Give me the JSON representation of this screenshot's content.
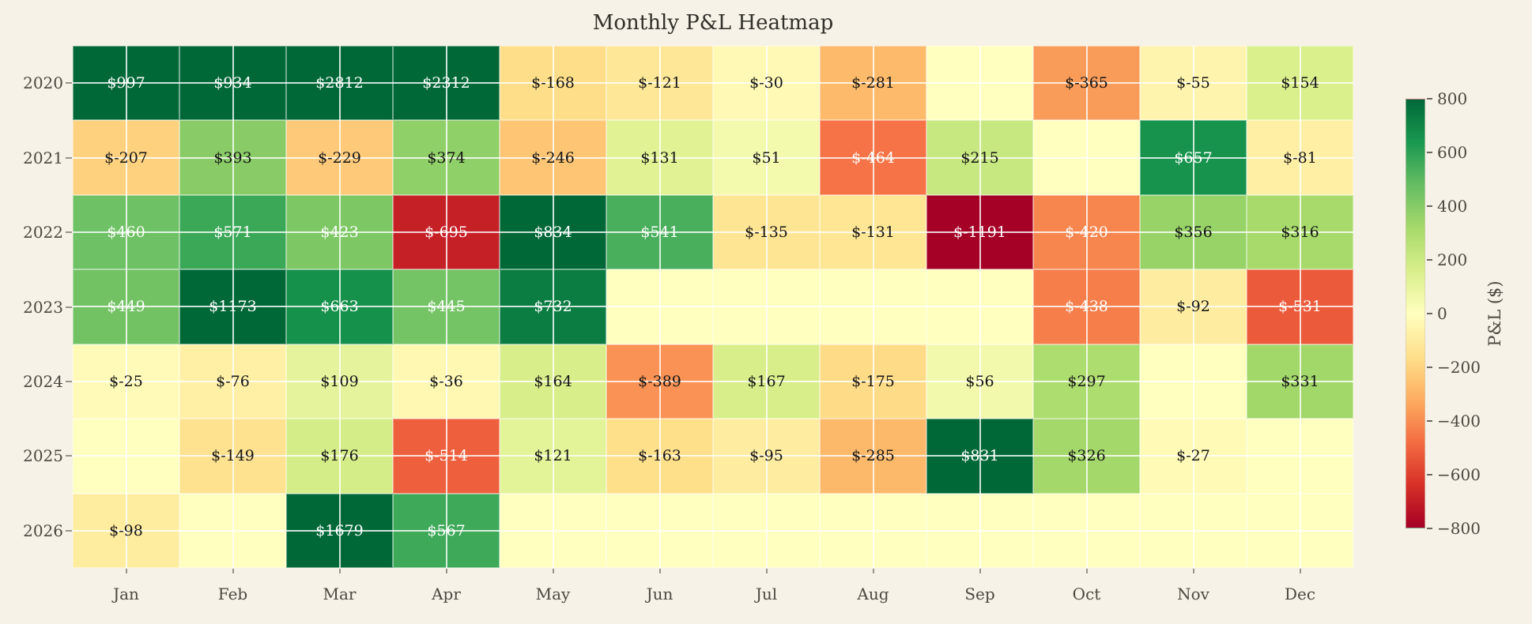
{
  "chart_data": {
    "type": "heatmap",
    "title": "Monthly P&L Heatmap",
    "x_labels": [
      "Jan",
      "Feb",
      "Mar",
      "Apr",
      "May",
      "Jun",
      "Jul",
      "Aug",
      "Sep",
      "Oct",
      "Nov",
      "Dec"
    ],
    "y_labels": [
      "2020",
      "2021",
      "2022",
      "2023",
      "2024",
      "2025",
      "2026"
    ],
    "values": [
      [
        997,
        934,
        2812,
        2312,
        -168,
        -121,
        -30,
        -281,
        null,
        -365,
        -55,
        154
      ],
      [
        -207,
        393,
        -229,
        374,
        -246,
        131,
        51,
        -464,
        215,
        null,
        657,
        -81
      ],
      [
        460,
        571,
        423,
        -695,
        834,
        541,
        -135,
        -131,
        -1191,
        -420,
        356,
        316
      ],
      [
        449,
        1173,
        663,
        445,
        732,
        null,
        null,
        null,
        null,
        -438,
        -92,
        -531
      ],
      [
        -25,
        -76,
        109,
        -36,
        164,
        -389,
        167,
        -175,
        56,
        297,
        null,
        331
      ],
      [
        null,
        -149,
        176,
        -514,
        121,
        -163,
        -95,
        -285,
        831,
        326,
        -27,
        null
      ],
      [
        -98,
        null,
        1679,
        567,
        null,
        null,
        null,
        null,
        null,
        null,
        null,
        null
      ]
    ],
    "annotation_prefix": "$",
    "vmin": -800,
    "vmax": 800,
    "colormap_name": "RdYlGn",
    "colormap_stops": [
      {
        "pos": 0.0,
        "color": "#a50026"
      },
      {
        "pos": 0.1,
        "color": "#d73027"
      },
      {
        "pos": 0.2,
        "color": "#f46d43"
      },
      {
        "pos": 0.3,
        "color": "#fdae61"
      },
      {
        "pos": 0.4,
        "color": "#fee08b"
      },
      {
        "pos": 0.5,
        "color": "#ffffbf"
      },
      {
        "pos": 0.6,
        "color": "#d9ef8b"
      },
      {
        "pos": 0.7,
        "color": "#a6d96a"
      },
      {
        "pos": 0.8,
        "color": "#66bd63"
      },
      {
        "pos": 0.9,
        "color": "#1a9850"
      },
      {
        "pos": 1.0,
        "color": "#006837"
      }
    ],
    "annotation_colors": {
      "white": "#ffffff",
      "dark": "#151515",
      "white_if_abs_greater_than": 400
    },
    "colorbar": {
      "label": "P&L ($)",
      "tick_labels": [
        "800",
        "600",
        "400",
        "200",
        "0",
        "−200",
        "−400",
        "−600",
        "−800"
      ],
      "tick_values": [
        800,
        600,
        400,
        200,
        0,
        -200,
        -400,
        -600,
        -800
      ]
    },
    "grid": true,
    "background_color": "#f7f2e7",
    "gridline_color": "#ffffff",
    "legend_position": "right-colorbar"
  }
}
